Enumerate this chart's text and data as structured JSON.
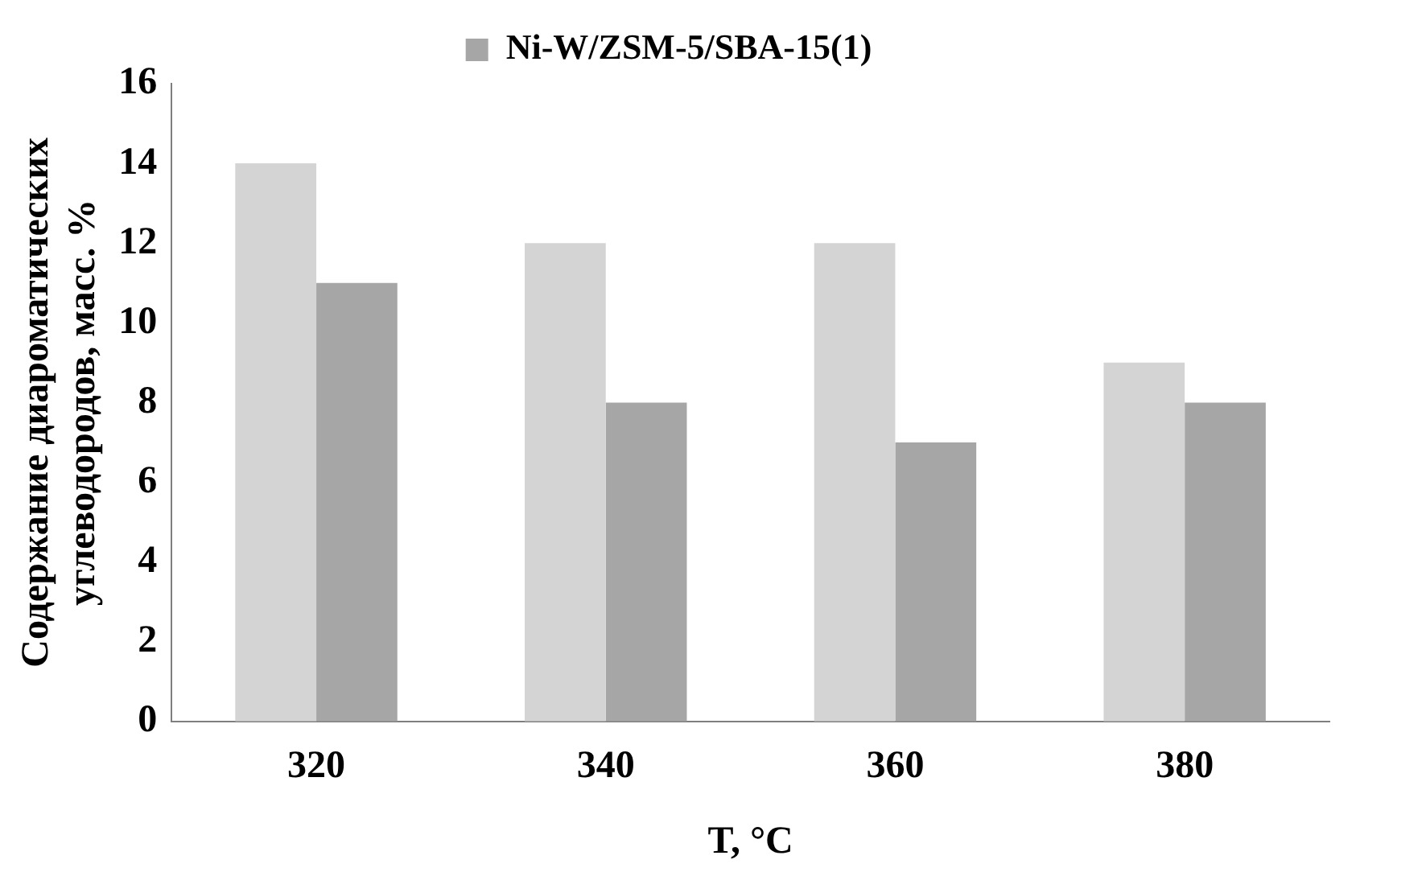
{
  "chart_data": {
    "type": "bar",
    "xlabel": "T, °C",
    "ylabel": "Содержание диароматических углеводородов, масс. %",
    "categories": [
      "320",
      "340",
      "360",
      "380"
    ],
    "series": [
      {
        "color": "#d4d4d4",
        "values": [
          14,
          12,
          12,
          9
        ]
      },
      {
        "name": "Ni-W/ZSM-5/SBA-15(1)",
        "color": "#a6a6a6",
        "values": [
          11,
          8,
          7,
          8
        ]
      }
    ],
    "ylim": [
      0,
      16
    ],
    "yticks": [
      0,
      2,
      4,
      6,
      8,
      10,
      12,
      14,
      16
    ],
    "grid": false,
    "legend": "top"
  }
}
